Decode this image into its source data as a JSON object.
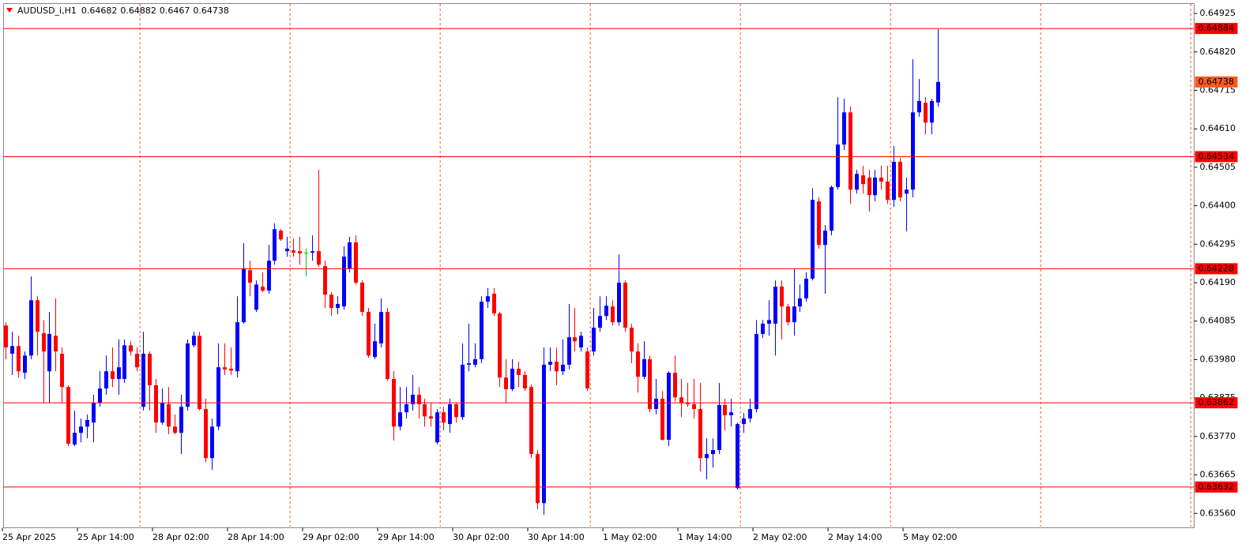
{
  "chart_data": {
    "type": "candlestick",
    "title": "AUDUSD_i,H1",
    "categories": [
      "25 Apr 2025",
      null,
      null,
      null,
      null,
      null,
      null,
      null,
      null,
      null,
      null,
      null,
      "25 Apr 14:00",
      null,
      null,
      null,
      null,
      null,
      null,
      null,
      null,
      null,
      null,
      null,
      "28 Apr 02:00",
      null,
      null,
      null,
      null,
      null,
      null,
      null,
      null,
      null,
      null,
      null,
      "28 Apr 14:00",
      null,
      null,
      null,
      null,
      null,
      null,
      null,
      null,
      null,
      null,
      null,
      "29 Apr 02:00",
      null,
      null,
      null,
      null,
      null,
      null,
      null,
      null,
      null,
      null,
      null,
      "29 Apr 14:00",
      null,
      null,
      null,
      null,
      null,
      null,
      null,
      null,
      null,
      null,
      null,
      "30 Apr 02:00",
      null,
      null,
      null,
      null,
      null,
      null,
      null,
      null,
      null,
      null,
      null,
      "30 Apr 14:00",
      null,
      null,
      null,
      null,
      null,
      null,
      null,
      null,
      null,
      null,
      null,
      "1 May 02:00",
      null,
      null,
      null,
      null,
      null,
      null,
      null,
      null,
      null,
      null,
      null,
      "1 May 14:00",
      null,
      null,
      null,
      null,
      null,
      null,
      null,
      null,
      null,
      null,
      null,
      "2 May 02:00",
      null,
      null,
      null,
      null,
      null,
      null,
      null,
      null,
      null,
      null,
      null,
      "2 May 14:00",
      null,
      null,
      null,
      null,
      null,
      null,
      null,
      null,
      null,
      null,
      null,
      "5 May 02:00",
      null,
      null,
      null,
      null,
      null
    ],
    "open": [
      0.64073,
      0.63996,
      0.64017,
      0.63944,
      0.63991,
      0.64142,
      0.64052,
      0.63948,
      0.64045,
      0.63996,
      0.63905,
      0.63748,
      0.6378,
      0.63797,
      0.63808,
      0.63862,
      0.63901,
      0.63948,
      0.63927,
      0.63927,
      0.64019,
      0.63996,
      0.63851,
      0.63996,
      0.6391,
      0.63808,
      0.63858,
      0.63797,
      0.6378,
      0.63851,
      0.64019,
      0.64045,
      0.63845,
      0.63711,
      0.63797,
      0.63959,
      0.63955,
      0.63948,
      0.64082,
      0.64224,
      0.64116,
      0.64179,
      0.64168,
      0.6425,
      0.64332,
      0.64276,
      0.64278,
      0.64276,
      0.64272,
      0.64272,
      0.64276,
      0.64235,
      0.64157,
      0.64121,
      0.64125,
      0.64229,
      0.643,
      0.6419,
      0.6411,
      0.63987,
      0.64024,
      0.6411,
      0.63927,
      0.63797,
      0.63836,
      0.63858,
      0.63884,
      0.63858,
      0.63825,
      0.63754,
      0.63836,
      0.63804,
      0.63858,
      0.63823,
      0.63966,
      0.63966,
      0.63981,
      0.64138,
      0.6416,
      0.64106,
      0.63931,
      0.63899,
      0.63955,
      0.63938,
      0.63905,
      0.63722,
      0.63588,
      0.63966,
      0.63974,
      0.63948,
      0.63966,
      0.64041,
      0.64013,
      0.64002,
      0.64002,
      0.64067,
      0.64099,
      0.64125,
      0.64082,
      0.6419,
      0.64067,
      0.64002,
      0.63933,
      0.63981,
      0.63845,
      0.63873,
      0.63761,
      0.63944,
      0.63877,
      0.63862,
      0.63858,
      0.63845,
      0.63711,
      0.63722,
      0.63733,
      0.63856,
      0.63828,
      0.63629,
      0.63804,
      0.63819,
      0.63845,
      0.6405,
      0.64078,
      0.64078,
      0.64179,
      0.64125,
      0.64082,
      0.64125,
      0.64147,
      0.64201,
      0.64412,
      0.64293,
      0.64332,
      0.64451,
      0.64567,
      0.64655,
      0.64444,
      0.64483,
      0.64477,
      0.64429,
      0.64477,
      0.64466,
      0.64416,
      0.6452,
      0.64433,
      0.64444,
      0.64655,
      0.64681,
      0.64627,
      0.64682
    ],
    "high": [
      0.64082,
      0.64056,
      0.64045,
      0.64002,
      0.64207,
      0.64153,
      0.64088,
      0.6411,
      0.64147,
      0.64013,
      0.6391,
      0.63841,
      0.63819,
      0.6383,
      0.63884,
      0.63948,
      0.63991,
      0.64013,
      0.64035,
      0.64035,
      0.6403,
      0.64013,
      0.64056,
      0.64002,
      0.63927,
      0.63901,
      0.63905,
      0.6383,
      0.63884,
      0.64035,
      0.64056,
      0.64056,
      0.63873,
      0.63819,
      0.64024,
      0.64024,
      0.64013,
      0.64153,
      0.64298,
      0.6425,
      0.64196,
      0.64218,
      0.64293,
      0.64352,
      0.64336,
      0.64315,
      0.64311,
      0.64315,
      0.64283,
      0.64319,
      0.64498,
      0.6425,
      0.64164,
      0.64153,
      0.64289,
      0.64315,
      0.64319,
      0.64196,
      0.64121,
      0.64078,
      0.64147,
      0.64121,
      0.63948,
      0.63905,
      0.63905,
      0.63938,
      0.63905,
      0.63873,
      0.63862,
      0.63845,
      0.63851,
      0.63873,
      0.63862,
      0.64024,
      0.64078,
      0.64024,
      0.64153,
      0.64175,
      0.64175,
      0.6411,
      0.63981,
      0.63981,
      0.63974,
      0.63948,
      0.63912,
      0.63733,
      0.64013,
      0.64013,
      0.64013,
      0.64035,
      0.64132,
      0.64121,
      0.64056,
      0.64013,
      0.64121,
      0.64153,
      0.64153,
      0.64142,
      0.64267,
      0.64196,
      0.64078,
      0.64024,
      0.6403,
      0.63991,
      0.63927,
      0.63894,
      0.63948,
      0.63991,
      0.63927,
      0.63916,
      0.63927,
      0.63916,
      0.63765,
      0.63765,
      0.63916,
      0.63873,
      0.63873,
      0.63808,
      0.63834,
      0.63873,
      0.64088,
      0.64088,
      0.64142,
      0.64196,
      0.64196,
      0.64132,
      0.64229,
      0.64185,
      0.64218,
      0.64448,
      0.64423,
      0.64347,
      0.64455,
      0.64696,
      0.64692,
      0.64671,
      0.64498,
      0.64509,
      0.64498,
      0.64498,
      0.64509,
      0.64509,
      0.64563,
      0.6453,
      0.64477,
      0.648,
      0.64746,
      0.64696,
      0.64692,
      0.64882
    ],
    "low": [
      0.63981,
      0.63938,
      0.63931,
      0.63927,
      0.63981,
      0.63991,
      0.63862,
      0.63862,
      0.63948,
      0.63862,
      0.63744,
      0.63744,
      0.63754,
      0.63765,
      0.63754,
      0.63851,
      0.63884,
      0.63905,
      0.63884,
      0.63916,
      0.63991,
      0.63948,
      0.63841,
      0.63841,
      0.6378,
      0.63802,
      0.63776,
      0.63776,
      0.63722,
      0.63841,
      0.64013,
      0.63841,
      0.637,
      0.63679,
      0.63787,
      0.63938,
      0.63938,
      0.63931,
      0.64078,
      0.64153,
      0.6411,
      0.64164,
      0.6416,
      0.64239,
      0.64304,
      0.64261,
      0.64261,
      0.64239,
      0.64207,
      0.6425,
      0.64233,
      0.64121,
      0.64099,
      0.64104,
      0.64116,
      0.64218,
      0.64185,
      0.64099,
      0.63985,
      0.63981,
      0.64013,
      0.63922,
      0.63759,
      0.63787,
      0.63819,
      0.63841,
      0.63819,
      0.63797,
      0.63797,
      0.63748,
      0.63787,
      0.6378,
      0.63808,
      0.63815,
      0.63948,
      0.63959,
      0.6397,
      0.64121,
      0.64099,
      0.63905,
      0.63862,
      0.63894,
      0.63905,
      0.63894,
      0.63711,
      0.63571,
      0.63556,
      0.63948,
      0.6391,
      0.63938,
      0.63953,
      0.64002,
      0.64002,
      0.63894,
      0.63991,
      0.64056,
      0.64088,
      0.64073,
      0.64073,
      0.64056,
      0.6397,
      0.6389,
      0.63927,
      0.63836,
      0.6383,
      0.63759,
      0.63744,
      0.63866,
      0.63823,
      0.63851,
      0.63819,
      0.63675,
      0.63653,
      0.63685,
      0.63722,
      0.63787,
      0.63797,
      0.63625,
      0.6378,
      0.63808,
      0.63836,
      0.64039,
      0.64045,
      0.63991,
      0.64035,
      0.64073,
      0.64045,
      0.6411,
      0.64138,
      0.64196,
      0.64283,
      0.6416,
      0.64319,
      0.64444,
      0.64552,
      0.64405,
      0.64433,
      0.64433,
      0.64384,
      0.64412,
      0.64444,
      0.64405,
      0.64397,
      0.64412,
      0.6433,
      0.64423,
      0.64643,
      0.64595,
      0.64595,
      0.6467
    ],
    "close": [
      0.64013,
      0.64017,
      0.63948,
      0.63991,
      0.64142,
      0.64056,
      0.64002,
      0.6405,
      0.64002,
      0.63905,
      0.6375,
      0.6378,
      0.63797,
      0.63815,
      0.63862,
      0.63901,
      0.63948,
      0.63927,
      0.63959,
      0.64019,
      0.64002,
      0.63959,
      0.63996,
      0.6391,
      0.63808,
      0.63862,
      0.63797,
      0.6378,
      0.63851,
      0.64024,
      0.64045,
      0.63845,
      0.63711,
      0.63797,
      0.63959,
      0.63953,
      0.6395,
      0.64082,
      0.64229,
      0.6419,
      0.64185,
      0.64168,
      0.6425,
      0.64336,
      0.64308,
      0.64283,
      0.64272,
      0.6427,
      0.64272,
      0.64276,
      0.64239,
      0.64157,
      0.64121,
      0.64132,
      0.64261,
      0.643,
      0.6419,
      0.6411,
      0.63991,
      0.6403,
      0.6411,
      0.63927,
      0.63797,
      0.63836,
      0.63858,
      0.63884,
      0.63858,
      0.63825,
      0.63819,
      0.63836,
      0.63808,
      0.63858,
      0.63823,
      0.63966,
      0.6397,
      0.63981,
      0.64138,
      0.64153,
      0.64106,
      0.63931,
      0.63899,
      0.63955,
      0.63938,
      0.63901,
      0.63722,
      0.63588,
      0.63966,
      0.63974,
      0.63948,
      0.63966,
      0.64041,
      0.6403,
      0.64045,
      0.63901,
      0.64067,
      0.64099,
      0.64127,
      0.64082,
      0.6419,
      0.64067,
      0.64002,
      0.63933,
      0.63981,
      0.63845,
      0.63873,
      0.63761,
      0.63944,
      0.63877,
      0.63862,
      0.63858,
      0.63845,
      0.63711,
      0.63722,
      0.63733,
      0.63856,
      0.63828,
      0.63836,
      0.63804,
      0.63819,
      0.63845,
      0.6405,
      0.64078,
      0.64088,
      0.64179,
      0.64125,
      0.64082,
      0.64125,
      0.64147,
      0.64201,
      0.64416,
      0.64293,
      0.64332,
      0.64451,
      0.64567,
      0.64655,
      0.64444,
      0.64487,
      0.64459,
      0.64429,
      0.64477,
      0.64466,
      0.64416,
      0.6452,
      0.64423,
      0.64444,
      0.64655,
      0.64686,
      0.64627,
      0.64686,
      0.64738
    ],
    "up_color": "#0000ff",
    "down_color": "#ff0000",
    "doji_color": "#00c800",
    "ylim": [
      0.63524,
      0.64951
    ],
    "yticks": [
      0.64925,
      {
        "value": 0.6482,
        "label": "0.64820"
      },
      0.64715,
      {
        "value": 0.6461,
        "label": "0.64610"
      },
      0.64505,
      {
        "value": 0.644,
        "label": "0.64400"
      },
      0.64295,
      {
        "value": 0.6419,
        "label": "0.64190"
      },
      0.64085,
      {
        "value": 0.6398,
        "label": "0.63980"
      },
      0.63875,
      {
        "value": 0.6377,
        "label": "0.63770"
      },
      0.63665,
      {
        "value": 0.6356,
        "label": "0.63560"
      }
    ],
    "levels": [
      0.64884,
      0.64534,
      0.64228,
      0.63862,
      0.63632
    ],
    "level_color": "#ff0000",
    "price_tag_color": "#ff5a1e"
  }
}
